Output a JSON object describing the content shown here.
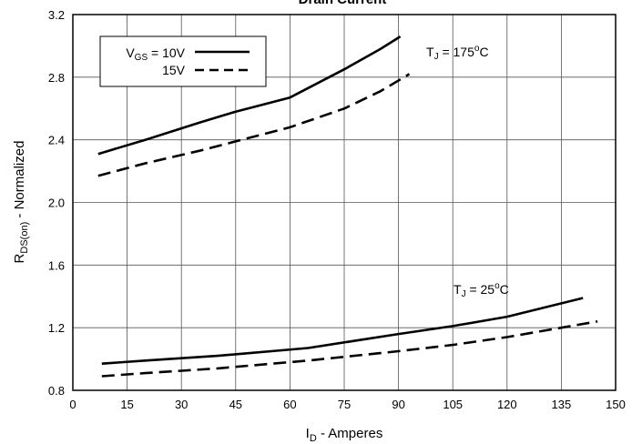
{
  "chart_data": {
    "type": "line",
    "title": "Drain Current",
    "xlabel": {
      "main": "I",
      "sub": "D",
      "rest": " - Amperes"
    },
    "ylabel": {
      "main": "R",
      "sub": "DS(on)",
      "rest": " - Normalized"
    },
    "xlim": [
      0,
      150
    ],
    "ylim": [
      0.8,
      3.2
    ],
    "x_ticks": [
      0,
      15,
      30,
      45,
      60,
      75,
      90,
      105,
      120,
      135,
      150
    ],
    "x_tick_labels": [
      "0",
      "15",
      "30",
      "45",
      "60",
      "75",
      "90",
      "105",
      "120",
      "135",
      "150"
    ],
    "y_ticks": [
      0.8,
      1.2,
      1.6,
      2.0,
      2.4,
      2.8,
      3.2
    ],
    "y_tick_labels": [
      "0.8",
      "1.2",
      "1.6",
      "2.0",
      "2.4",
      "2.8",
      "3.2"
    ],
    "grid": true,
    "legend": {
      "placement": "top-left",
      "entries": [
        {
          "label_main": "V",
          "label_sub": "GS",
          "label_rest": " = 10V",
          "style": "solid"
        },
        {
          "label_main": "",
          "label_sub": "",
          "label_rest": "15V",
          "style": "dashed"
        }
      ]
    },
    "annotations": [
      {
        "main": "T",
        "sub": "J",
        "mid": " = 175",
        "sup": "o",
        "tail": "C",
        "x": 120,
        "y": 2.95
      },
      {
        "main": "T",
        "sub": "J",
        "mid": " = 25",
        "sup": "o",
        "tail": "C",
        "x": 120,
        "y": 1.44
      }
    ],
    "series": [
      {
        "group": "TJ = 175°C",
        "vgs": "10V",
        "style": "solid",
        "x": [
          7,
          20,
          35,
          45,
          60,
          75,
          85,
          90.5
        ],
        "y": [
          2.31,
          2.4,
          2.51,
          2.58,
          2.67,
          2.85,
          2.98,
          3.06
        ]
      },
      {
        "group": "TJ = 175°C",
        "vgs": "15V",
        "style": "dashed",
        "x": [
          7,
          20,
          35,
          45,
          60,
          75,
          85,
          93
        ],
        "y": [
          2.17,
          2.25,
          2.33,
          2.39,
          2.48,
          2.6,
          2.71,
          2.82
        ]
      },
      {
        "group": "TJ = 25°C",
        "vgs": "10V",
        "style": "solid",
        "x": [
          8,
          20,
          40,
          65,
          90,
          105,
          120,
          141
        ],
        "y": [
          0.97,
          0.99,
          1.02,
          1.07,
          1.16,
          1.21,
          1.27,
          1.39
        ]
      },
      {
        "group": "TJ = 25°C",
        "vgs": "15V",
        "style": "dashed",
        "x": [
          8,
          20,
          40,
          65,
          90,
          105,
          120,
          145
        ],
        "y": [
          0.89,
          0.91,
          0.94,
          0.99,
          1.05,
          1.09,
          1.14,
          1.24
        ]
      }
    ]
  }
}
